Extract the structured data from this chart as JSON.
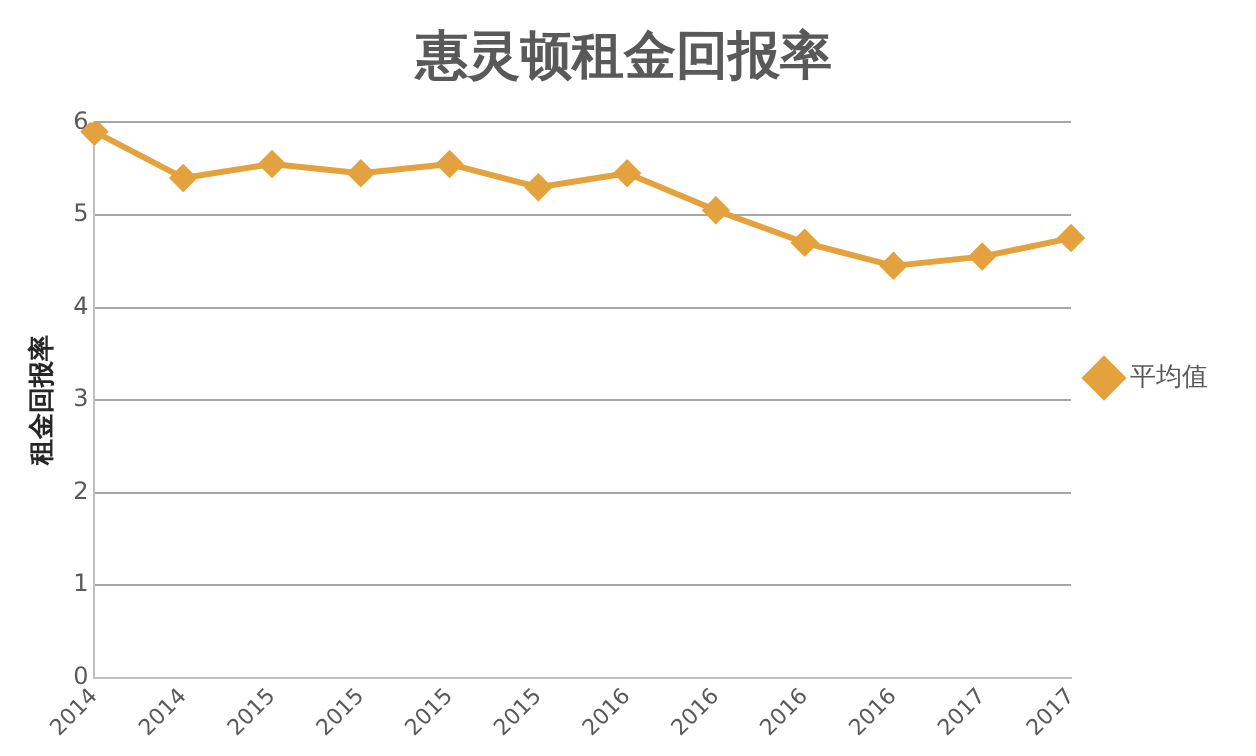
{
  "chart_data": {
    "type": "line",
    "title": "惠灵顿租金回报率",
    "ylabel": "租金回报率",
    "categories": [
      "2014",
      "2014",
      "2015",
      "2015",
      "2015",
      "2015",
      "2016",
      "2016",
      "2016",
      "2016",
      "2017",
      "2017"
    ],
    "series": [
      {
        "name": "平均值",
        "color": "#e3a23e",
        "values": [
          5.9,
          5.4,
          5.55,
          5.45,
          5.55,
          5.3,
          5.45,
          5.05,
          4.7,
          4.45,
          4.55,
          4.75
        ]
      }
    ],
    "ylim": [
      0,
      6
    ],
    "yticks": [
      0,
      1,
      2,
      3,
      4,
      5,
      6
    ],
    "grid": "y",
    "legend": "right",
    "marker": "diamond",
    "line_style": "solid"
  }
}
